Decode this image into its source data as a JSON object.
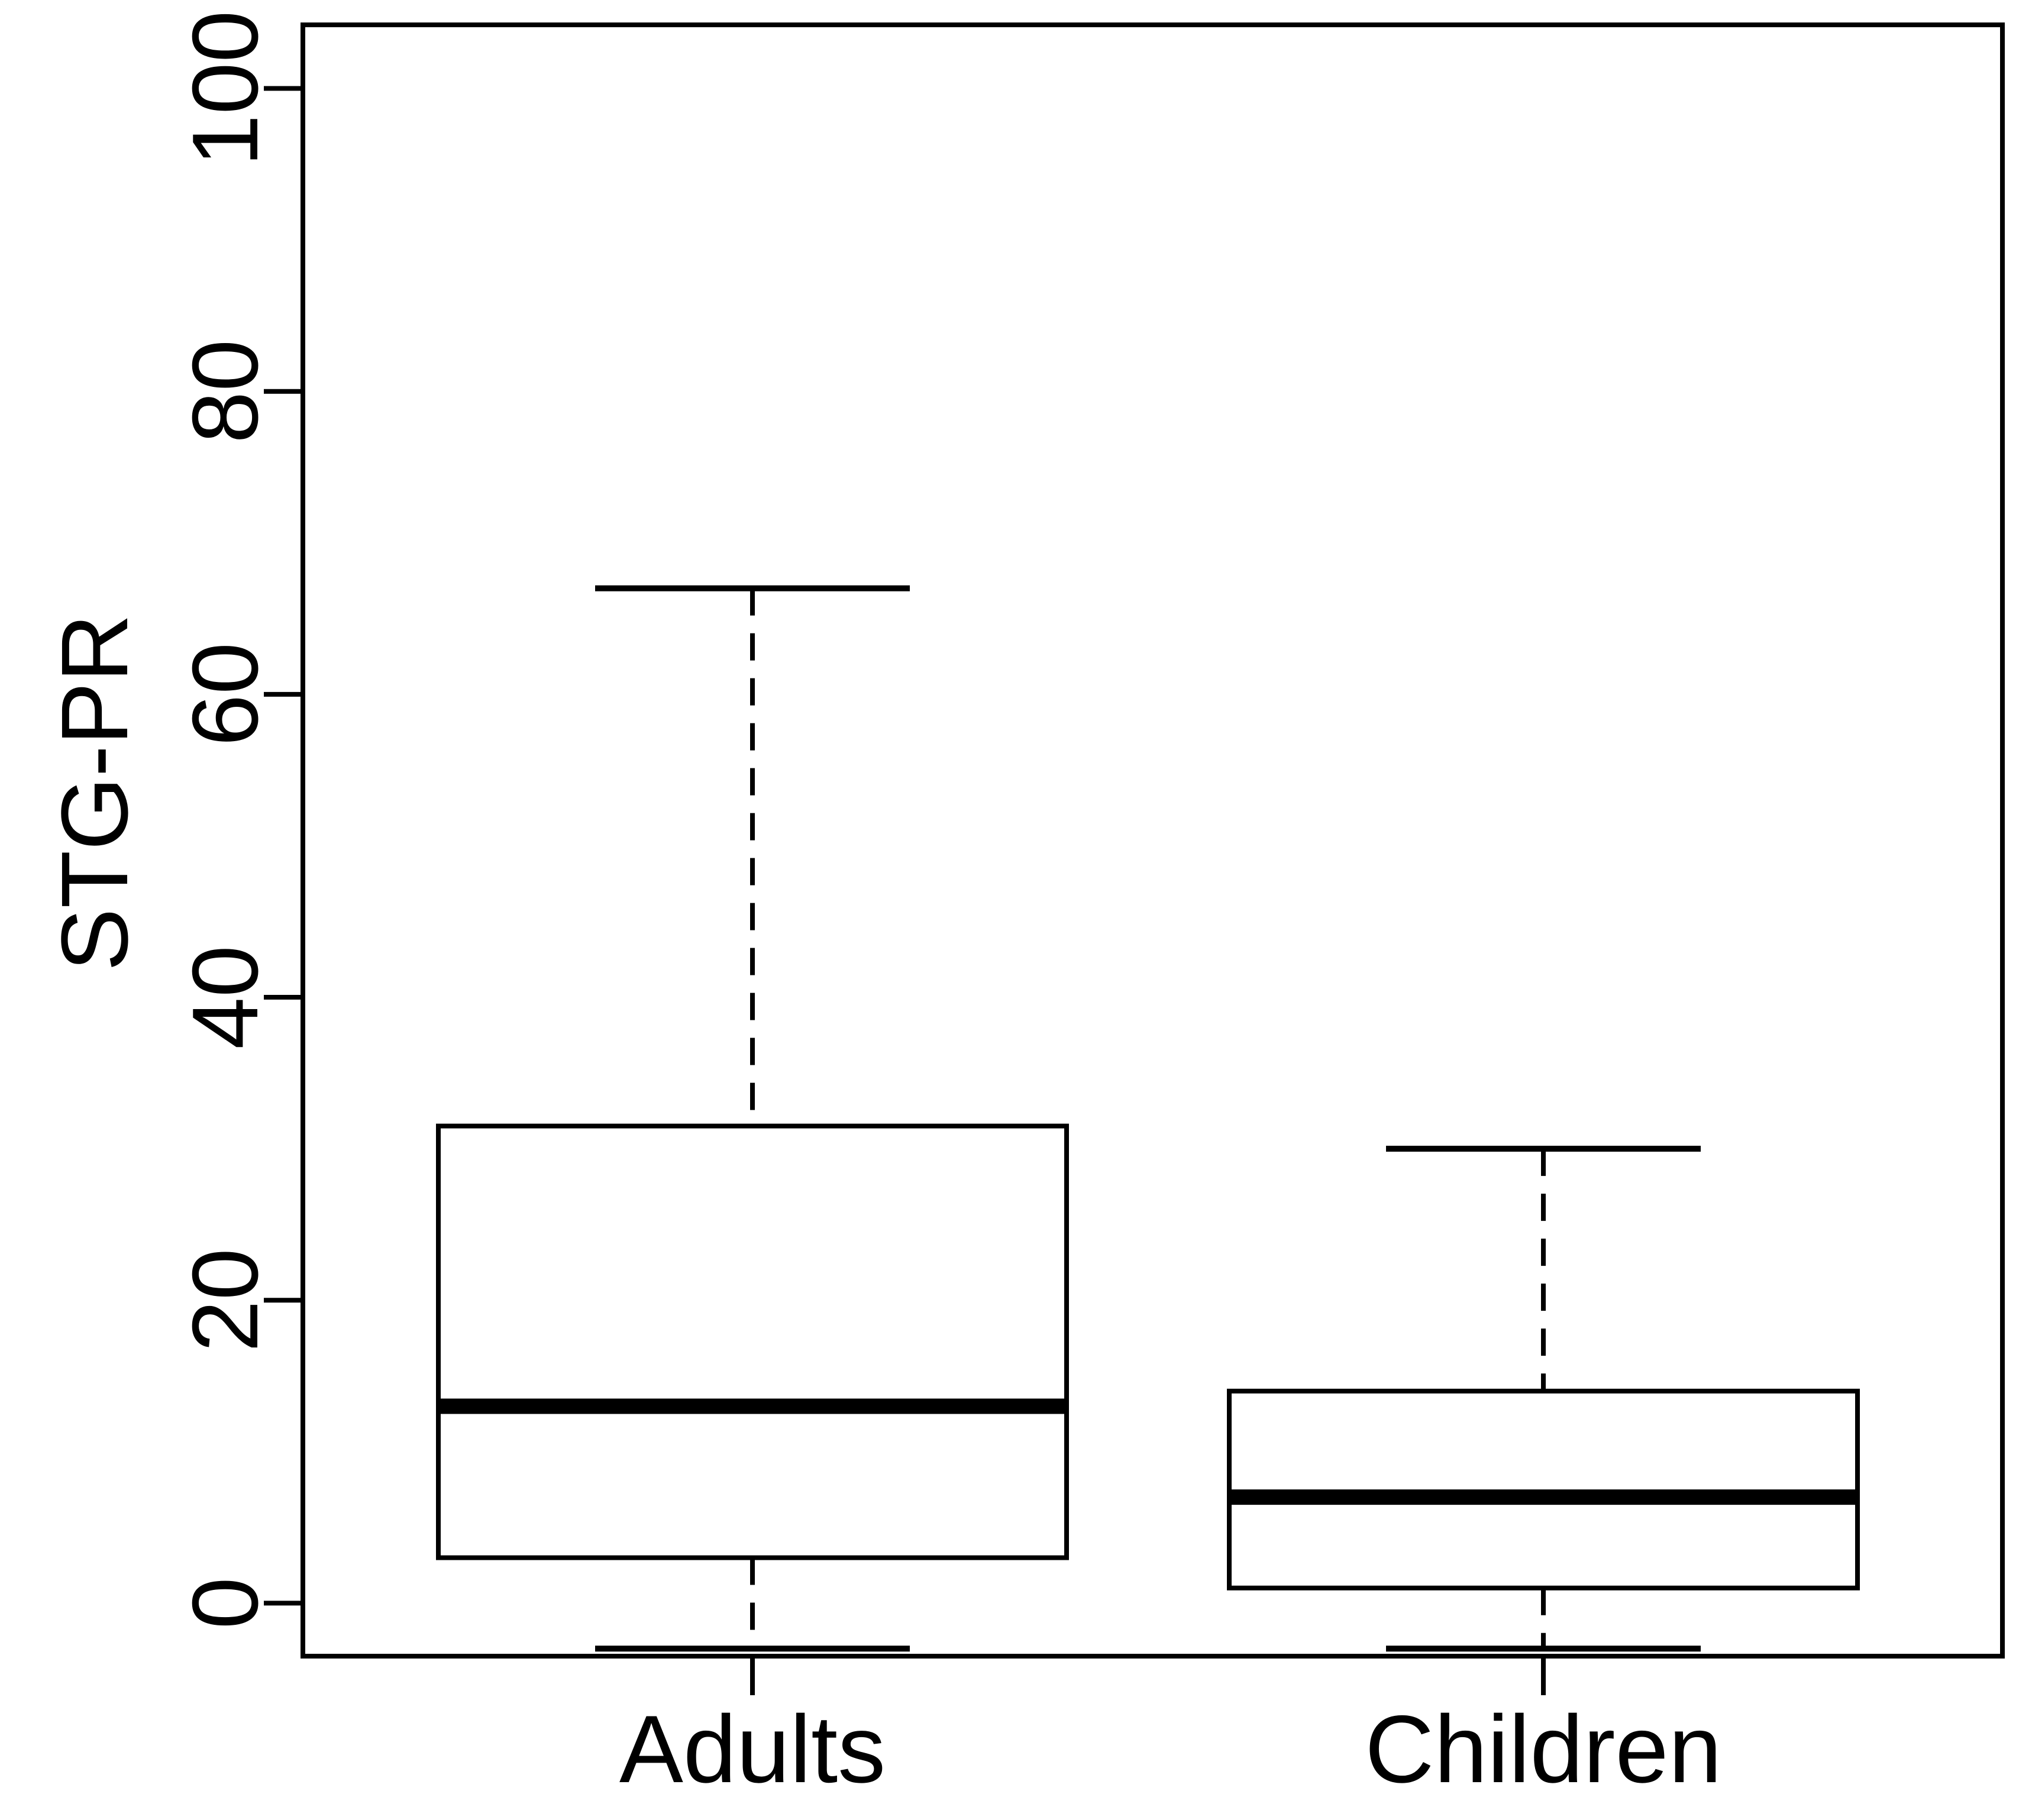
{
  "figure": {
    "background_color": "#ffffff",
    "ink_color": "#000000"
  },
  "chart_data": {
    "type": "box",
    "title": "",
    "xlabel": "",
    "ylabel": "STG-PR",
    "categories": [
      "Adults",
      "Children"
    ],
    "ytick_labels": [
      "0",
      "20",
      "40",
      "60",
      "80",
      "100"
    ],
    "yticks": [
      0,
      20,
      40,
      60,
      80,
      100
    ],
    "ylim": [
      -3.5,
      104.2
    ],
    "grid": false,
    "legend": false,
    "whisker_style": "dashed",
    "series": [
      {
        "name": "Adults",
        "whisker_low": -3,
        "q1": 3,
        "median": 13,
        "q3": 31.5,
        "whisker_high": 67
      },
      {
        "name": "Children",
        "whisker_low": -3,
        "q1": 1,
        "median": 7,
        "q3": 14,
        "whisker_high": 30
      }
    ]
  }
}
